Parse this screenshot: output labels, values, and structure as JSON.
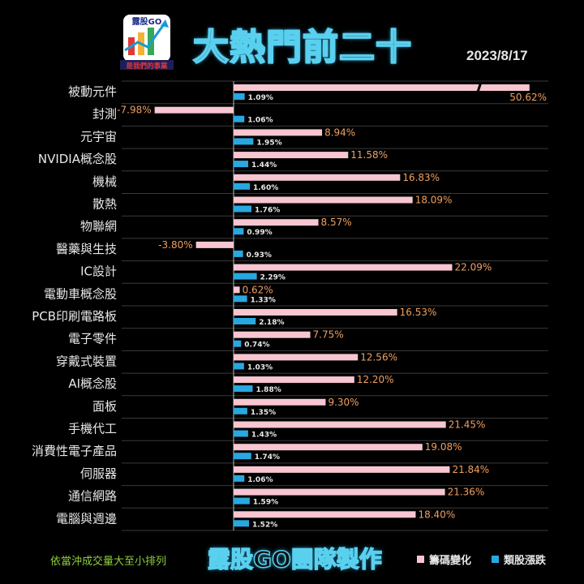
{
  "header": {
    "logo_text": "露股GO",
    "logo_caption": "是我們的事業",
    "title": "大熱門前二十",
    "date": "2023/8/17"
  },
  "colors": {
    "chip_change": "#f7c6d0",
    "sector_change": "#29a8e0",
    "label_negative_chip": "#f0a060",
    "grid": "#3a3a3a",
    "axis": "#bbbbbb"
  },
  "chart_data": {
    "type": "bar",
    "orientation": "horizontal",
    "categories": [
      "被動元件",
      "封測",
      "元宇宙",
      "NVIDIA概念股",
      "機械",
      "散熱",
      "物聯網",
      "醫藥與生技",
      "IC設計",
      "電動車概念股",
      "PCB印刷電路板",
      "電子零件",
      "穿戴式裝置",
      "AI概念股",
      "面板",
      "手機代工",
      "消費性電子產品",
      "伺服器",
      "通信網路",
      "電腦與週邊"
    ],
    "series": [
      {
        "name": "籌碼變化",
        "values": [
          50.62,
          -7.98,
          8.94,
          11.58,
          16.83,
          18.09,
          8.57,
          -3.8,
          22.09,
          0.62,
          16.53,
          7.75,
          12.56,
          12.2,
          9.3,
          21.45,
          19.08,
          21.84,
          21.36,
          18.4
        ],
        "labels": [
          "50.62%",
          "-7.98%",
          "8.94%",
          "11.58%",
          "16.83%",
          "18.09%",
          "8.57%",
          "-3.80%",
          "22.09%",
          "0.62%",
          "16.53%",
          "7.75%",
          "12.56%",
          "12.20%",
          "9.30%",
          "21.45%",
          "19.08%",
          "21.84%",
          "21.36%",
          "18.40%"
        ]
      },
      {
        "name": "類股漲跌",
        "values": [
          1.09,
          1.06,
          1.95,
          1.44,
          1.6,
          1.76,
          0.99,
          0.93,
          2.29,
          1.33,
          2.18,
          0.74,
          1.03,
          1.88,
          1.35,
          1.43,
          1.74,
          1.06,
          1.59,
          1.52
        ],
        "labels": [
          "1.09%",
          "1.06%",
          "1.95%",
          "1.44%",
          "1.60%",
          "1.76%",
          "0.99%",
          "0.93%",
          "2.29%",
          "1.33%",
          "2.18%",
          "0.74%",
          "1.03%",
          "1.88%",
          "1.35%",
          "1.43%",
          "1.74%",
          "1.06%",
          "1.59%",
          "1.52%"
        ]
      }
    ],
    "broken_axis": true,
    "legend_position": "bottom-right",
    "grid": true
  },
  "footer": {
    "note": "依當沖成交量大至小排列",
    "credit": "露股GO團隊製作",
    "legend": [
      "籌碼變化",
      "類股漲跌"
    ]
  }
}
